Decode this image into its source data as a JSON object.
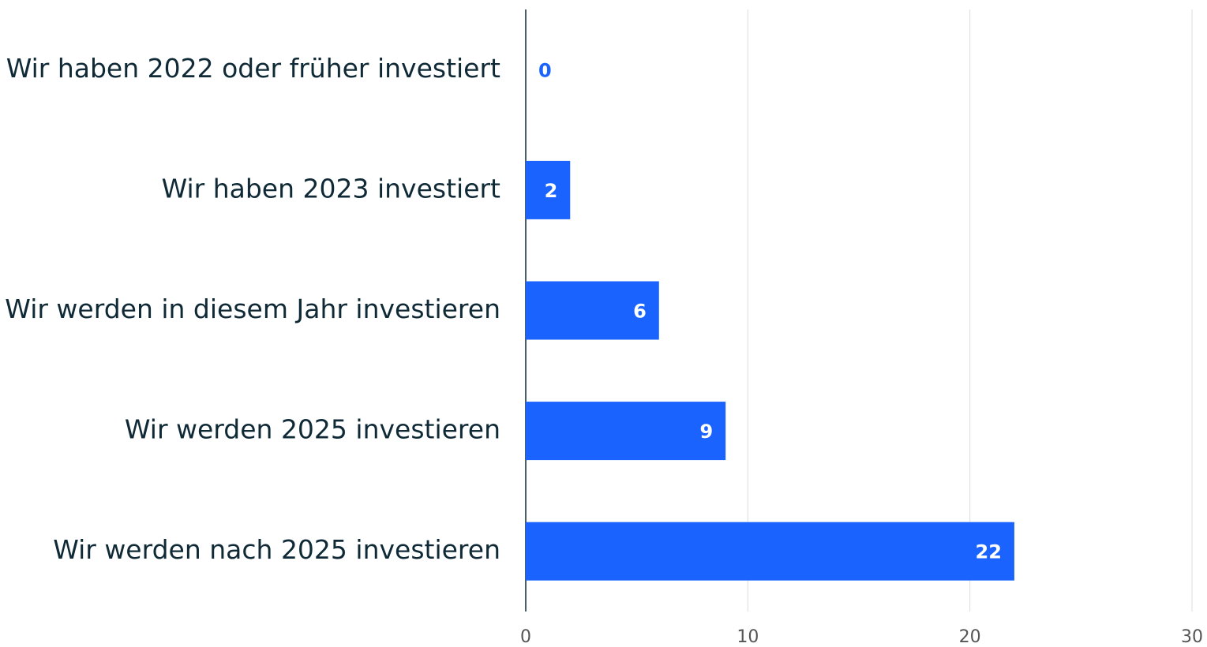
{
  "chart_data": {
    "type": "bar",
    "orientation": "horizontal",
    "categories": [
      "Wir haben 2022 oder früher investiert",
      "Wir haben 2023 investiert",
      "Wir werden in diesem Jahr investieren",
      "Wir werden 2025 investieren",
      "Wir werden nach 2025 investieren"
    ],
    "values": [
      0,
      2,
      6,
      9,
      22
    ],
    "color": "#1a63ff",
    "xlim": [
      0,
      30
    ],
    "xticks": [
      0,
      10,
      20,
      30
    ],
    "grid": true
  }
}
